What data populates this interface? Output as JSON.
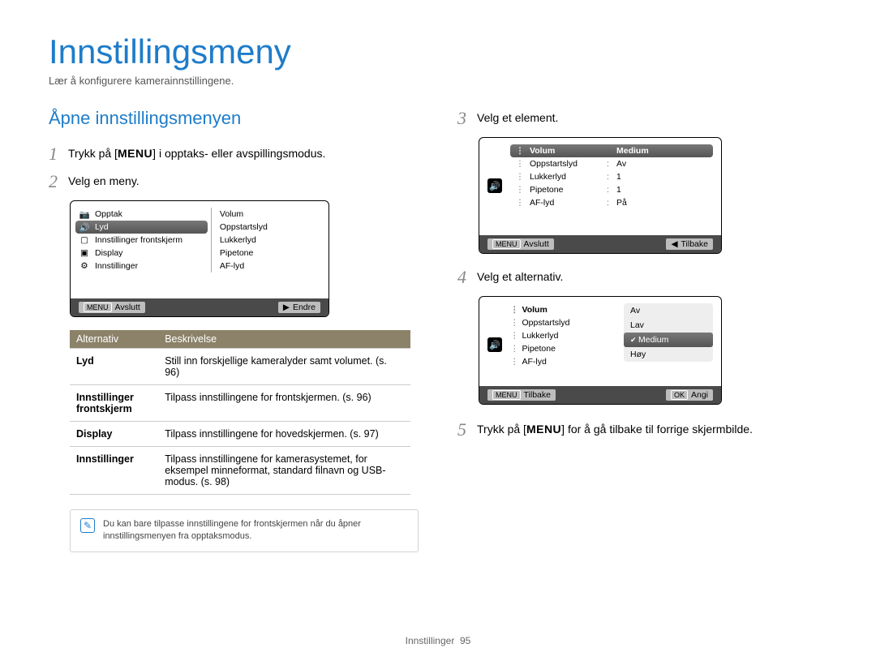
{
  "title": "Innstillingsmeny",
  "subtitle": "Lær å konfigurere kamerainnstillingene.",
  "section_heading": "Åpne innstillingsmenyen",
  "steps": {
    "s1": {
      "num": "1",
      "pre": "Trykk på [",
      "kw": "MENU",
      "post": "] i opptaks- eller avspillingsmodus."
    },
    "s2": {
      "num": "2",
      "text": "Velg en meny."
    },
    "s3": {
      "num": "3",
      "text": "Velg et element."
    },
    "s4": {
      "num": "4",
      "text": "Velg et alternativ."
    },
    "s5": {
      "num": "5",
      "pre": "Trykk på [",
      "kw": "MENU",
      "post": "] for å gå tilbake til forrige skjermbilde."
    }
  },
  "lcd2": {
    "left": [
      {
        "icon": "📷",
        "label": "Opptak"
      },
      {
        "icon": "🔊",
        "label": "Lyd",
        "selected": true
      },
      {
        "icon": "▢",
        "label": "Innstillinger frontskjerm"
      },
      {
        "icon": "▣",
        "label": "Display"
      },
      {
        "icon": "⚙",
        "label": "Innstillinger"
      }
    ],
    "right": [
      "Volum",
      "Oppstartslyd",
      "Lukkerlyd",
      "Pipetone",
      "AF-lyd"
    ],
    "footer_left_tag": "MENU",
    "footer_left": "Avslutt",
    "footer_right_sym": "▶",
    "footer_right": "Endre"
  },
  "table": {
    "h1": "Alternativ",
    "h2": "Beskrivelse",
    "rows": [
      {
        "k": "Lyd",
        "v": "Still inn forskjellige kameralyder samt volumet. (s. 96)"
      },
      {
        "k": "Innstillinger frontskjerm",
        "v": "Tilpass innstillingene for frontskjermen. (s. 96)"
      },
      {
        "k": "Display",
        "v": "Tilpass innstillingene for hovedskjermen. (s. 97)"
      },
      {
        "k": "Innstillinger",
        "v": "Tilpass innstillingene for kamerasystemet, for eksempel minneformat, standard filnavn og USB-modus. (s. 98)"
      }
    ]
  },
  "note": "Du kan bare tilpasse innstillingene for frontskjermen når du åpner innstillingsmenyen fra opptaksmodus.",
  "lcd3": {
    "rows": [
      {
        "k": "Volum",
        "v": "Medium",
        "selected": true
      },
      {
        "k": "Oppstartslyd",
        "v": "Av"
      },
      {
        "k": "Lukkerlyd",
        "v": "1"
      },
      {
        "k": "Pipetone",
        "v": "1"
      },
      {
        "k": "AF-lyd",
        "v": "På"
      }
    ],
    "footer_left_tag": "MENU",
    "footer_left": "Avslutt",
    "footer_right_sym": "◀",
    "footer_right": "Tilbake"
  },
  "lcd4": {
    "left": [
      "Volum",
      "Oppstartslyd",
      "Lukkerlyd",
      "Pipetone",
      "AF-lyd"
    ],
    "options": [
      {
        "label": "Av"
      },
      {
        "label": "Lav"
      },
      {
        "label": "Medium",
        "selected": true
      },
      {
        "label": "Høy"
      }
    ],
    "footer_left_tag": "MENU",
    "footer_left": "Tilbake",
    "footer_right_tag": "OK",
    "footer_right": "Angi"
  },
  "page_footer": {
    "label": "Innstillinger",
    "num": "95"
  }
}
